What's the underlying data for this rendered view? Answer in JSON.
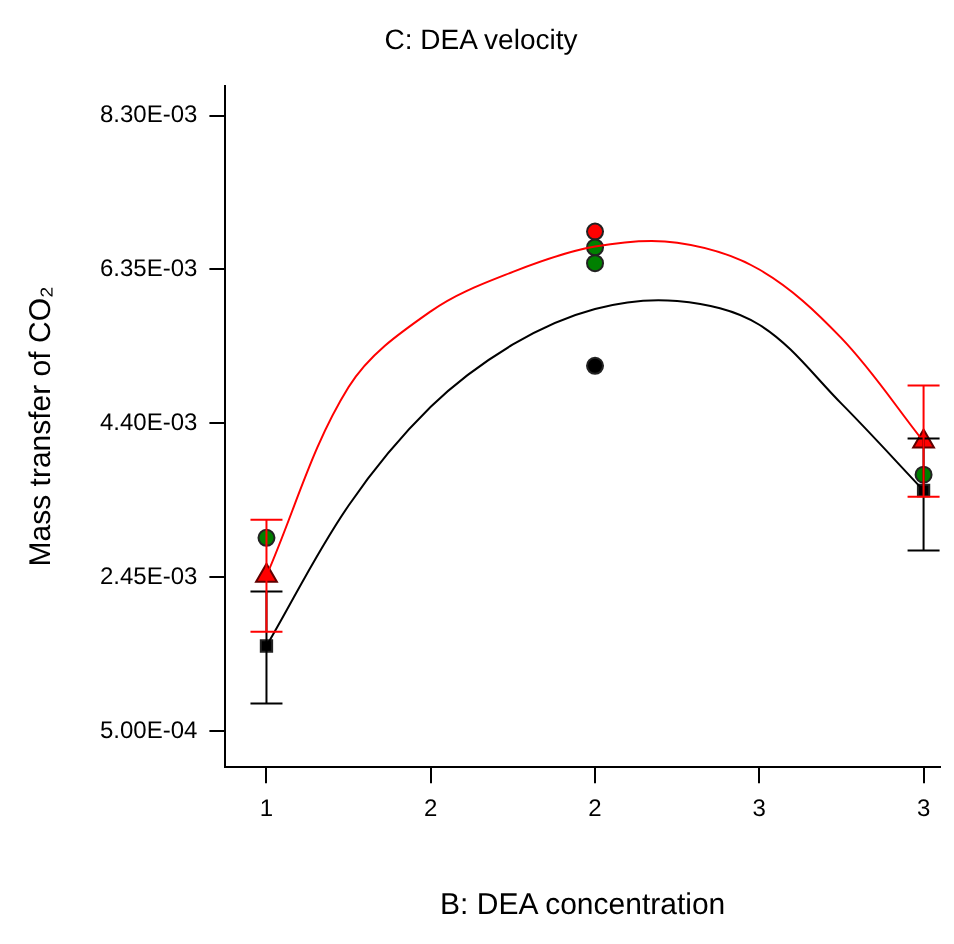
{
  "chart_data": {
    "type": "scatter",
    "title": "C: DEA velocity",
    "xlabel": "B: DEA concentration",
    "ylabel": "Mass transfer of CO₂",
    "xlim": [
      0.875,
      3.05
    ],
    "xticks": [
      1,
      {
        "value": 1.5,
        "label": "2"
      },
      2,
      {
        "value": 2.5,
        "label": "3"
      },
      3
    ],
    "ylim": [
      4.4e-05,
      0.00868
    ],
    "yticks": [
      {
        "value": 0.0005,
        "label": "5.00E-04"
      },
      {
        "value": 0.00245,
        "label": "2.45E-03"
      },
      {
        "value": 0.0044,
        "label": "4.40E-03"
      },
      {
        "value": 0.00635,
        "label": "6.35E-03"
      },
      {
        "value": 0.0083,
        "label": "8.30E-03"
      }
    ],
    "grid": false,
    "legend": false,
    "series": [
      {
        "type": "line",
        "color": "#000000",
        "marker": "none",
        "x": [
          1,
          1.25,
          1.5,
          1.75,
          2,
          2.25,
          2.5,
          2.75,
          3
        ],
        "values": [
          0.00158,
          0.00336,
          0.00461,
          0.0054,
          0.00585,
          0.00595,
          0.00565,
          0.00465,
          0.00355
        ]
      },
      {
        "type": "line",
        "color": "#ff0000",
        "marker": "none",
        "x": [
          1,
          1.25,
          1.5,
          1.75,
          2,
          2.25,
          2.5,
          2.75,
          3
        ],
        "values": [
          0.00247,
          0.00486,
          0.00582,
          0.00632,
          0.00664,
          0.00669,
          0.00635,
          0.00548,
          0.00417
        ]
      },
      {
        "type": "scatter",
        "color": "#000000",
        "marker": "square",
        "x": [
          1,
          3
        ],
        "values": [
          0.00158,
          0.00355
        ],
        "errors": [
          [
            0.00085,
            0.00227
          ],
          [
            0.00279,
            0.00421
          ]
        ]
      },
      {
        "type": "scatter",
        "color": "#ff0000",
        "marker": "triangle",
        "x": [
          1,
          3
        ],
        "values": [
          0.00247,
          0.00417
        ],
        "errors": [
          [
            0.00176,
            0.00318
          ],
          [
            0.00347,
            0.00488
          ]
        ]
      },
      {
        "type": "scatter",
        "color": "#008000",
        "marker": "circle",
        "x": [
          1,
          2,
          2,
          3
        ],
        "values": [
          0.00295,
          0.00663,
          0.00643,
          0.00375
        ]
      },
      {
        "type": "scatter",
        "color": "#ff0000",
        "marker": "circle",
        "x": [
          2
        ],
        "values": [
          0.00683
        ]
      },
      {
        "type": "scatter",
        "color": "#000000",
        "marker": "circle",
        "x": [
          2
        ],
        "values": [
          0.00513
        ]
      }
    ]
  }
}
